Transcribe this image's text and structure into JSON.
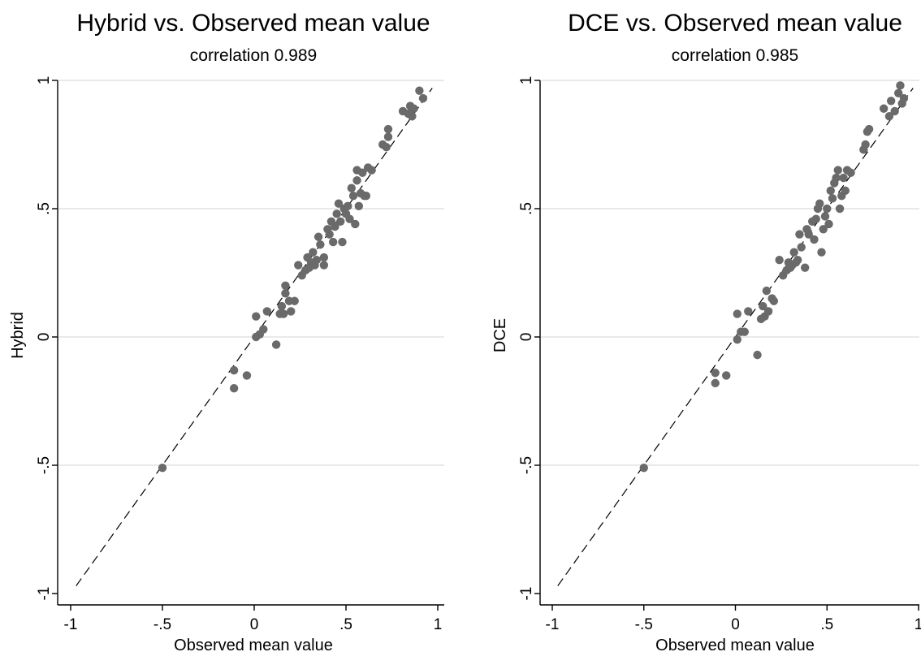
{
  "chart_data": [
    {
      "type": "scatter",
      "title": "Hybrid vs. Observed mean value",
      "subtitle": "correlation 0.989",
      "xlabel": "Observed mean value",
      "ylabel": "Hybrid",
      "xlim": [
        -1,
        1
      ],
      "ylim": [
        -1,
        1
      ],
      "xticks": [
        -1,
        -0.5,
        0,
        0.5,
        1
      ],
      "xtick_labels": [
        "-1",
        "-.5",
        "0",
        ".5",
        "1"
      ],
      "yticks": [
        -1,
        -0.5,
        0,
        0.5,
        1
      ],
      "ytick_labels": [
        "-1",
        "-.5",
        "0",
        ".5",
        "1"
      ],
      "grid": "horizontal",
      "reference_line": {
        "style": "dashed",
        "x": [
          -0.97,
          0.97
        ],
        "y": [
          -0.97,
          0.97
        ]
      },
      "color": "#6a6a6a",
      "points": [
        [
          -0.5,
          -0.51
        ],
        [
          -0.11,
          -0.13
        ],
        [
          -0.11,
          -0.2
        ],
        [
          -0.04,
          -0.15
        ],
        [
          0.01,
          0.08
        ],
        [
          0.01,
          0.0
        ],
        [
          0.03,
          0.01
        ],
        [
          0.05,
          0.03
        ],
        [
          0.07,
          0.1
        ],
        [
          0.12,
          -0.03
        ],
        [
          0.14,
          0.09
        ],
        [
          0.15,
          0.12
        ],
        [
          0.16,
          0.09
        ],
        [
          0.17,
          0.17
        ],
        [
          0.17,
          0.2
        ],
        [
          0.19,
          0.14
        ],
        [
          0.2,
          0.1
        ],
        [
          0.22,
          0.14
        ],
        [
          0.24,
          0.28
        ],
        [
          0.26,
          0.24
        ],
        [
          0.28,
          0.26
        ],
        [
          0.29,
          0.31
        ],
        [
          0.3,
          0.27
        ],
        [
          0.31,
          0.29
        ],
        [
          0.32,
          0.33
        ],
        [
          0.33,
          0.28
        ],
        [
          0.34,
          0.3
        ],
        [
          0.35,
          0.39
        ],
        [
          0.36,
          0.36
        ],
        [
          0.38,
          0.31
        ],
        [
          0.38,
          0.28
        ],
        [
          0.4,
          0.42
        ],
        [
          0.41,
          0.4
        ],
        [
          0.42,
          0.45
        ],
        [
          0.43,
          0.37
        ],
        [
          0.44,
          0.43
        ],
        [
          0.45,
          0.48
        ],
        [
          0.46,
          0.52
        ],
        [
          0.47,
          0.45
        ],
        [
          0.48,
          0.37
        ],
        [
          0.49,
          0.5
        ],
        [
          0.5,
          0.48
        ],
        [
          0.51,
          0.51
        ],
        [
          0.52,
          0.46
        ],
        [
          0.53,
          0.58
        ],
        [
          0.54,
          0.55
        ],
        [
          0.55,
          0.44
        ],
        [
          0.56,
          0.61
        ],
        [
          0.56,
          0.65
        ],
        [
          0.57,
          0.51
        ],
        [
          0.58,
          0.56
        ],
        [
          0.59,
          0.64
        ],
        [
          0.6,
          0.55
        ],
        [
          0.61,
          0.55
        ],
        [
          0.62,
          0.66
        ],
        [
          0.64,
          0.65
        ],
        [
          0.7,
          0.75
        ],
        [
          0.72,
          0.74
        ],
        [
          0.73,
          0.78
        ],
        [
          0.73,
          0.81
        ],
        [
          0.81,
          0.88
        ],
        [
          0.84,
          0.87
        ],
        [
          0.85,
          0.9
        ],
        [
          0.86,
          0.86
        ],
        [
          0.87,
          0.89
        ],
        [
          0.9,
          0.96
        ],
        [
          0.92,
          0.93
        ]
      ]
    },
    {
      "type": "scatter",
      "title": "DCE vs. Observed mean value",
      "subtitle": "correlation 0.985",
      "xlabel": "Observed mean value",
      "ylabel": "DCE",
      "xlim": [
        -1,
        1
      ],
      "ylim": [
        -1,
        1
      ],
      "xticks": [
        -1,
        -0.5,
        0,
        0.5,
        1
      ],
      "xtick_labels": [
        "-1",
        "-.5",
        "0",
        ".5",
        "1"
      ],
      "yticks": [
        -1,
        -0.5,
        0,
        0.5,
        1
      ],
      "ytick_labels": [
        "-1",
        "-.5",
        "0",
        ".5",
        "1"
      ],
      "grid": "horizontal",
      "reference_line": {
        "style": "dashed",
        "x": [
          -0.97,
          0.97
        ],
        "y": [
          -0.97,
          0.97
        ]
      },
      "color": "#6a6a6a",
      "points": [
        [
          -0.5,
          -0.51
        ],
        [
          -0.11,
          -0.14
        ],
        [
          -0.11,
          -0.18
        ],
        [
          -0.05,
          -0.15
        ],
        [
          0.01,
          0.09
        ],
        [
          0.01,
          -0.01
        ],
        [
          0.03,
          0.02
        ],
        [
          0.05,
          0.02
        ],
        [
          0.07,
          0.1
        ],
        [
          0.12,
          -0.07
        ],
        [
          0.14,
          0.07
        ],
        [
          0.15,
          0.12
        ],
        [
          0.16,
          0.08
        ],
        [
          0.17,
          0.18
        ],
        [
          0.18,
          0.1
        ],
        [
          0.2,
          0.15
        ],
        [
          0.21,
          0.14
        ],
        [
          0.24,
          0.3
        ],
        [
          0.26,
          0.24
        ],
        [
          0.28,
          0.26
        ],
        [
          0.29,
          0.29
        ],
        [
          0.3,
          0.27
        ],
        [
          0.31,
          0.28
        ],
        [
          0.32,
          0.33
        ],
        [
          0.33,
          0.29
        ],
        [
          0.34,
          0.3
        ],
        [
          0.35,
          0.4
        ],
        [
          0.36,
          0.35
        ],
        [
          0.38,
          0.27
        ],
        [
          0.39,
          0.42
        ],
        [
          0.4,
          0.4
        ],
        [
          0.42,
          0.45
        ],
        [
          0.43,
          0.38
        ],
        [
          0.44,
          0.46
        ],
        [
          0.45,
          0.5
        ],
        [
          0.46,
          0.52
        ],
        [
          0.47,
          0.33
        ],
        [
          0.48,
          0.42
        ],
        [
          0.49,
          0.47
        ],
        [
          0.5,
          0.5
        ],
        [
          0.51,
          0.44
        ],
        [
          0.52,
          0.57
        ],
        [
          0.53,
          0.54
        ],
        [
          0.54,
          0.6
        ],
        [
          0.55,
          0.62
        ],
        [
          0.56,
          0.65
        ],
        [
          0.57,
          0.5
        ],
        [
          0.58,
          0.55
        ],
        [
          0.59,
          0.62
        ],
        [
          0.6,
          0.57
        ],
        [
          0.61,
          0.65
        ],
        [
          0.63,
          0.64
        ],
        [
          0.7,
          0.73
        ],
        [
          0.71,
          0.75
        ],
        [
          0.72,
          0.8
        ],
        [
          0.73,
          0.81
        ],
        [
          0.81,
          0.89
        ],
        [
          0.84,
          0.86
        ],
        [
          0.85,
          0.92
        ],
        [
          0.87,
          0.88
        ],
        [
          0.89,
          0.95
        ],
        [
          0.9,
          0.98
        ],
        [
          0.91,
          0.91
        ],
        [
          0.92,
          0.93
        ]
      ]
    }
  ]
}
